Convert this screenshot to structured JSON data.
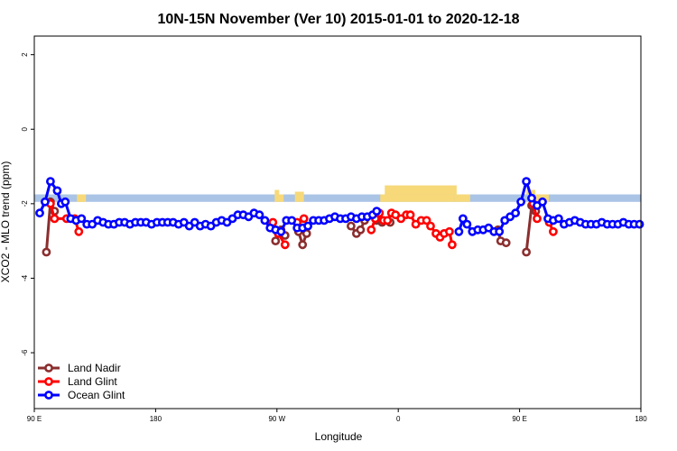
{
  "chart_data": {
    "type": "line",
    "title": "10N-15N November (Ver 10)   2015-01-01 to 2020-12-18",
    "xlabel": "Longitude",
    "ylabel": "XCO2 - MLO trend (ppm)",
    "xlim": [
      -90,
      180
    ],
    "ylim": [
      -7.5,
      2.5
    ],
    "x_ticks": [
      {
        "value": -90,
        "label": "90 E"
      },
      {
        "value": -36,
        "label": "180"
      },
      {
        "value": 18,
        "label": "90 W"
      },
      {
        "value": 72,
        "label": "0"
      },
      {
        "value": 126,
        "label": "90 E"
      },
      {
        "value": 180,
        "label": "180"
      }
    ],
    "y_ticks": [
      {
        "value": 2,
        "label": "2"
      },
      {
        "value": 0,
        "label": "0"
      },
      {
        "value": -2,
        "label": "-2"
      },
      {
        "value": -4,
        "label": "-4"
      },
      {
        "value": -6,
        "label": "-6"
      }
    ],
    "land_band": {
      "y_top": -1.75,
      "y_bottom": -1.95,
      "color": "#aac4e6"
    },
    "land_mask_color": "#f7d97a",
    "land_segments": [
      [
        -71,
        -68
      ],
      [
        -70,
        -67
      ],
      [
        17,
        21
      ],
      [
        26,
        30
      ],
      [
        64,
        97
      ],
      [
        97,
        104
      ],
      [
        133,
        137
      ],
      [
        135,
        139
      ]
    ],
    "legend_position": "bottom-left",
    "series": [
      {
        "name": "Land Nadir",
        "color": "#8b2e2e",
        "segments": [
          [
            [
              -84.6,
              -3.3
            ],
            [
              -82.8,
              -1.95
            ],
            [
              -81,
              -2.2
            ]
          ],
          [
            [
              17.4,
              -3.0
            ],
            [
              19.8,
              -2.7
            ],
            [
              21.6,
              -2.85
            ]
          ],
          [
            [
              27.6,
              -2.75
            ],
            [
              29.4,
              -3.1
            ],
            [
              31.2,
              -2.8
            ]
          ],
          [
            [
              51,
              -2.6
            ],
            [
              53.4,
              -2.8
            ],
            [
              55.2,
              -2.7
            ],
            [
              57,
              -2.45
            ]
          ],
          [
            [
              62.4,
              -2.45
            ],
            [
              64.8,
              -2.5
            ],
            [
              68.4,
              -2.5
            ]
          ],
          [
            [
              116.4,
              -2.7
            ],
            [
              117.6,
              -3.0
            ],
            [
              120,
              -3.05
            ]
          ],
          [
            [
              129,
              -3.3
            ],
            [
              131.4,
              -2.05
            ],
            [
              133.2,
              -2.2
            ]
          ]
        ]
      },
      {
        "name": "Land Glint",
        "color": "#ff0000",
        "segments": [
          [
            [
              -82.8,
              -2.0
            ],
            [
              -81,
              -2.4
            ],
            [
              -75.6,
              -2.4
            ],
            [
              -72,
              -2.4
            ],
            [
              -70.2,
              -2.75
            ]
          ],
          [
            [
              16.2,
              -2.5
            ],
            [
              18.6,
              -2.8
            ],
            [
              21.6,
              -3.1
            ]
          ],
          [
            [
              27,
              -2.5
            ],
            [
              30,
              -2.4
            ]
          ],
          [
            [
              60,
              -2.7
            ],
            [
              61.8,
              -2.4
            ],
            [
              63.6,
              -2.25
            ],
            [
              65.4,
              -2.45
            ],
            [
              67.2,
              -2.45
            ],
            [
              69,
              -2.25
            ],
            [
              70.8,
              -2.3
            ],
            [
              73.2,
              -2.4
            ],
            [
              75.6,
              -2.3
            ],
            [
              77.4,
              -2.3
            ],
            [
              79.8,
              -2.55
            ],
            [
              82.2,
              -2.45
            ],
            [
              84.6,
              -2.45
            ],
            [
              86.4,
              -2.6
            ],
            [
              88.8,
              -2.8
            ],
            [
              90.6,
              -2.9
            ],
            [
              92.4,
              -2.8
            ],
            [
              94.8,
              -2.75
            ],
            [
              96,
              -3.1
            ]
          ],
          [
            [
              132,
              -2.0
            ],
            [
              133.8,
              -2.4
            ]
          ],
          [
            [
              139.2,
              -2.5
            ],
            [
              141,
              -2.75
            ]
          ]
        ]
      },
      {
        "name": "Ocean Glint",
        "color": "#0000ff",
        "segments": [
          [
            [
              -87.6,
              -2.25
            ],
            [
              -85.2,
              -1.95
            ],
            [
              -82.8,
              -1.4
            ],
            [
              -79.8,
              -1.65
            ],
            [
              -78,
              -2.0
            ],
            [
              -76.2,
              -1.95
            ],
            [
              -73.8,
              -2.4
            ],
            [
              -71.4,
              -2.45
            ],
            [
              -69,
              -2.4
            ],
            [
              -66.6,
              -2.55
            ],
            [
              -64.2,
              -2.55
            ],
            [
              -61.8,
              -2.45
            ],
            [
              -59.4,
              -2.5
            ],
            [
              -57,
              -2.55
            ],
            [
              -54.6,
              -2.55
            ],
            [
              -52.2,
              -2.5
            ],
            [
              -49.8,
              -2.5
            ],
            [
              -47.4,
              -2.55
            ],
            [
              -45,
              -2.5
            ],
            [
              -42.6,
              -2.5
            ],
            [
              -40.2,
              -2.5
            ],
            [
              -37.8,
              -2.55
            ],
            [
              -35.4,
              -2.5
            ],
            [
              -33,
              -2.5
            ],
            [
              -30.6,
              -2.5
            ],
            [
              -28.2,
              -2.5
            ],
            [
              -25.8,
              -2.55
            ],
            [
              -23.4,
              -2.5
            ],
            [
              -21,
              -2.6
            ],
            [
              -18.6,
              -2.5
            ],
            [
              -16.2,
              -2.6
            ],
            [
              -13.8,
              -2.55
            ],
            [
              -11.4,
              -2.6
            ],
            [
              -9,
              -2.5
            ],
            [
              -6.6,
              -2.45
            ],
            [
              -4.2,
              -2.5
            ],
            [
              -1.8,
              -2.4
            ],
            [
              0.6,
              -2.3
            ],
            [
              3,
              -2.3
            ],
            [
              5.4,
              -2.35
            ],
            [
              7.8,
              -2.25
            ],
            [
              10.2,
              -2.3
            ],
            [
              12.6,
              -2.45
            ],
            [
              15,
              -2.65
            ],
            [
              17.4,
              -2.7
            ],
            [
              19.8,
              -2.75
            ],
            [
              22.2,
              -2.45
            ],
            [
              24.6,
              -2.45
            ],
            [
              27,
              -2.65
            ],
            [
              29.4,
              -2.65
            ],
            [
              31.8,
              -2.6
            ],
            [
              34.2,
              -2.45
            ],
            [
              36.6,
              -2.45
            ],
            [
              39,
              -2.45
            ],
            [
              41.4,
              -2.4
            ],
            [
              43.8,
              -2.35
            ],
            [
              46.2,
              -2.4
            ],
            [
              48.6,
              -2.4
            ],
            [
              51,
              -2.35
            ],
            [
              53.4,
              -2.4
            ],
            [
              55.8,
              -2.35
            ],
            [
              58.2,
              -2.35
            ],
            [
              60.6,
              -2.3
            ],
            [
              62.4,
              -2.2
            ]
          ],
          [
            [
              99,
              -2.75
            ],
            [
              100.8,
              -2.4
            ],
            [
              102.6,
              -2.55
            ],
            [
              105,
              -2.75
            ],
            [
              107.4,
              -2.7
            ],
            [
              109.8,
              -2.7
            ],
            [
              112.2,
              -2.65
            ],
            [
              114.6,
              -2.75
            ],
            [
              117,
              -2.75
            ],
            [
              119.4,
              -2.45
            ],
            [
              121.8,
              -2.35
            ],
            [
              124.2,
              -2.25
            ],
            [
              126.6,
              -1.95
            ],
            [
              129,
              -1.4
            ],
            [
              131.4,
              -1.85
            ],
            [
              133.8,
              -2.05
            ],
            [
              136.2,
              -1.95
            ],
            [
              138.6,
              -2.4
            ],
            [
              141,
              -2.45
            ],
            [
              143.4,
              -2.4
            ],
            [
              145.8,
              -2.55
            ],
            [
              148.2,
              -2.5
            ],
            [
              150.6,
              -2.45
            ],
            [
              153,
              -2.5
            ],
            [
              155.4,
              -2.55
            ],
            [
              157.8,
              -2.55
            ],
            [
              160.2,
              -2.55
            ],
            [
              162.6,
              -2.5
            ],
            [
              165,
              -2.55
            ],
            [
              167.4,
              -2.55
            ],
            [
              169.8,
              -2.55
            ],
            [
              172.2,
              -2.5
            ],
            [
              174.6,
              -2.55
            ],
            [
              177,
              -2.55
            ],
            [
              179.4,
              -2.55
            ]
          ]
        ]
      }
    ]
  }
}
